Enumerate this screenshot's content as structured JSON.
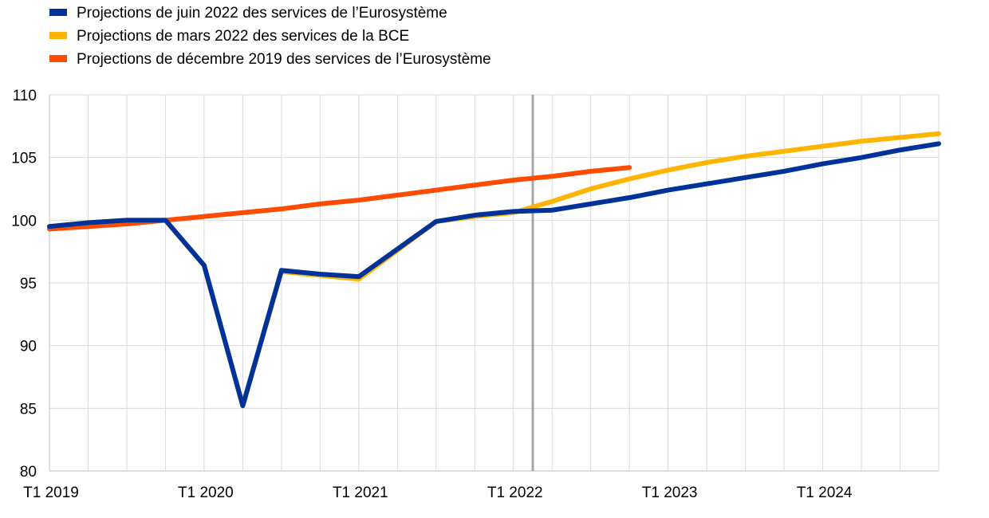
{
  "chart_data": {
    "type": "line",
    "categories": [
      "T1 2019",
      "T2 2019",
      "T3 2019",
      "T4 2019",
      "T1 2020",
      "T2 2020",
      "T3 2020",
      "T4 2020",
      "T1 2021",
      "T2 2021",
      "T3 2021",
      "T4 2021",
      "T1 2022",
      "T2 2022",
      "T3 2022",
      "T4 2022",
      "T1 2023",
      "T2 2023",
      "T3 2023",
      "T4 2023",
      "T1 2024",
      "T2 2024",
      "T3 2024",
      "T4 2024"
    ],
    "x_tick_labels": [
      "T1 2019",
      "T1 2020",
      "T1 2021",
      "T1 2022",
      "T1 2023",
      "T1 2024"
    ],
    "ylim": [
      80,
      110
    ],
    "y_ticks": [
      80,
      85,
      90,
      95,
      100,
      105,
      110
    ],
    "grid": true,
    "legend_position": "top-left",
    "vertical_marker": "between T1 2022 and T2 2022",
    "series": [
      {
        "name": "Projections de décembre 2019 des services de l’Eurosystème",
        "color": "#ff4b00",
        "values": [
          99.3,
          99.5,
          99.7,
          100.0,
          100.3,
          100.6,
          100.9,
          101.3,
          101.6,
          102.0,
          102.4,
          102.8,
          103.2,
          103.5,
          103.9,
          104.2,
          null,
          null,
          null,
          null,
          null,
          null,
          null,
          null
        ]
      },
      {
        "name": "Projections de mars 2022 des services de la BCE",
        "color": "#ffb400",
        "values": [
          99.5,
          99.8,
          100.0,
          100.0,
          96.4,
          85.2,
          95.9,
          95.6,
          95.3,
          97.6,
          99.9,
          100.3,
          100.6,
          101.5,
          102.5,
          103.3,
          104.0,
          104.6,
          105.1,
          105.5,
          105.9,
          106.3,
          106.6,
          106.9
        ]
      },
      {
        "name": "Projections de juin 2022 des services de l’Eurosystème",
        "color": "#003299",
        "values": [
          99.5,
          99.8,
          100.0,
          100.0,
          96.4,
          85.2,
          96.0,
          95.7,
          95.5,
          97.7,
          99.9,
          100.4,
          100.7,
          100.8,
          101.3,
          101.8,
          102.4,
          102.9,
          103.4,
          103.9,
          104.5,
          105.0,
          105.6,
          106.1
        ]
      }
    ],
    "legend_order": [
      2,
      1,
      0
    ]
  }
}
